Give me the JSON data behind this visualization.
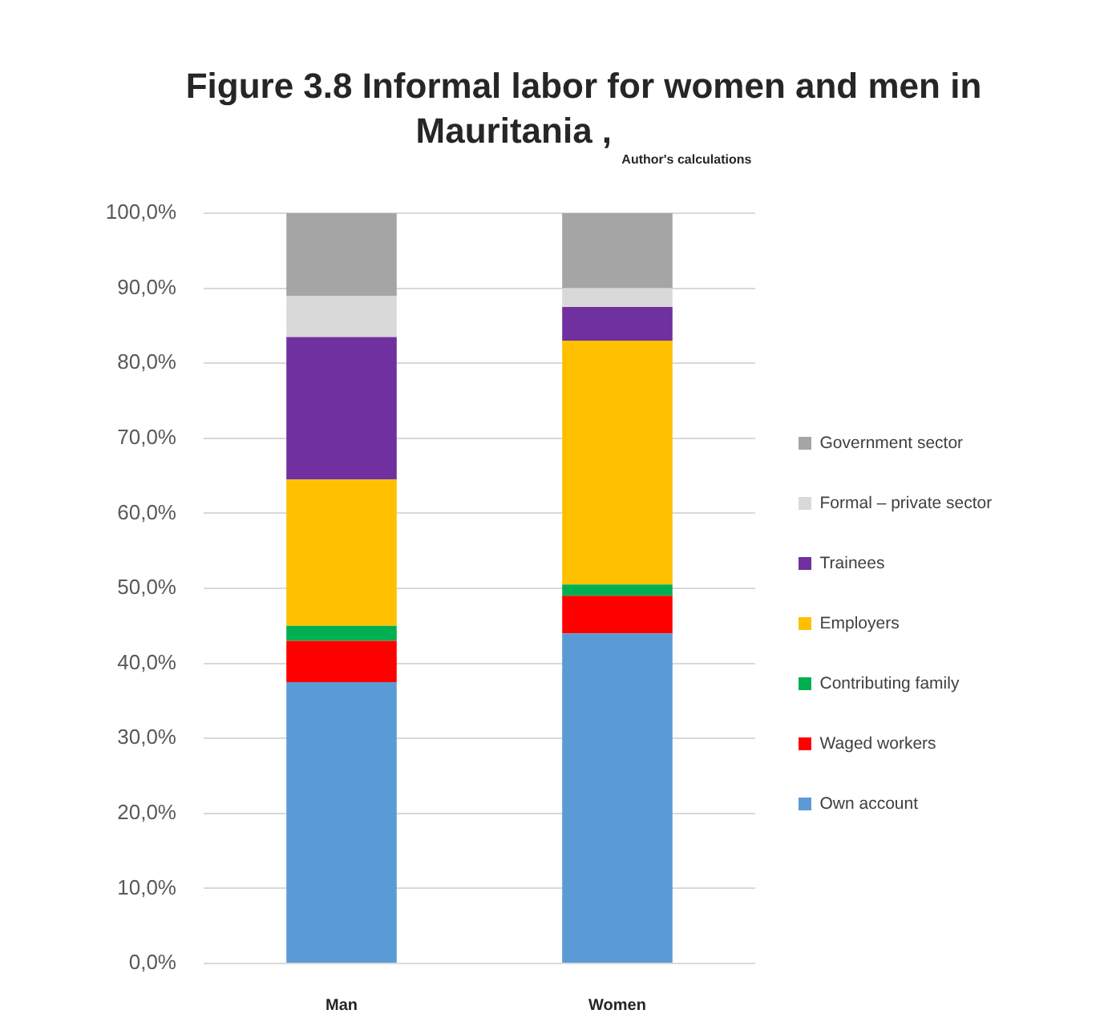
{
  "chart_data": {
    "type": "bar",
    "title": "Figure 3.8 Informal labor for women and men in Mauritania ,",
    "annotations": [
      "Author's calculations"
    ],
    "categories": [
      "Man",
      "Women"
    ],
    "series": [
      {
        "name": "Own account",
        "color": "#5b9bd5",
        "values": [
          37.5,
          44
        ]
      },
      {
        "name": "Waged workers",
        "color": "#ff0000",
        "values": [
          5.5,
          5
        ]
      },
      {
        "name": "Contributing family",
        "color": "#00b050",
        "values": [
          2,
          1.5
        ]
      },
      {
        "name": "Employers",
        "color": "#ffc000",
        "values": [
          19.5,
          32.5
        ]
      },
      {
        "name": "Trainees",
        "color": "#7030a0",
        "values": [
          19,
          4.5
        ]
      },
      {
        "name": "Formal – private sector",
        "color": "#d9d9d9",
        "values": [
          5.5,
          2.5
        ]
      },
      {
        "name": "Government sector",
        "color": "#a5a5a5",
        "values": [
          11,
          10
        ]
      }
    ],
    "stacked": true,
    "ylim": [
      0,
      100
    ],
    "yticks": [
      {
        "value": 0,
        "label": "0,0%"
      },
      {
        "value": 10,
        "label": "10,0%"
      },
      {
        "value": 20,
        "label": "20,0%"
      },
      {
        "value": 30,
        "label": "30,0%"
      },
      {
        "value": 40,
        "label": "40,0%"
      },
      {
        "value": 50,
        "label": "50,0%"
      },
      {
        "value": 60,
        "label": "60,0%"
      },
      {
        "value": 70,
        "label": "70,0%"
      },
      {
        "value": 80,
        "label": "80,0%"
      },
      {
        "value": 90,
        "label": "90,0%"
      },
      {
        "value": 100,
        "label": "100,0%"
      }
    ],
    "grid": "y",
    "legend": "right"
  }
}
